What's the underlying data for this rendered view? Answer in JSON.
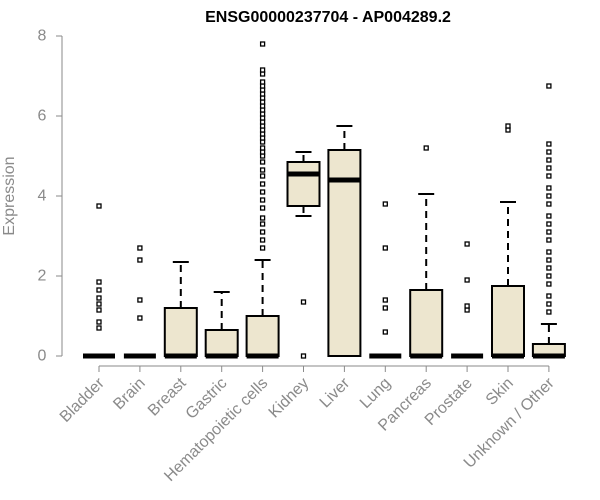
{
  "chart_data": {
    "type": "box",
    "title": "ENSG00000237704 - AP004289.2",
    "xlabel": "",
    "ylabel": "Expression",
    "ylim": [
      0,
      8
    ],
    "yticks": [
      0,
      2,
      4,
      6,
      8
    ],
    "categories": [
      "Bladder",
      "Brain",
      "Breast",
      "Gastric",
      "Hematopoietic cells",
      "Kidney",
      "Liver",
      "Lung",
      "Pancreas",
      "Prostate",
      "Skin",
      "Unknown / Other"
    ],
    "box_fill": "#ede6cf",
    "boxes": [
      {
        "category": "Bladder",
        "q1": 0,
        "median": 0,
        "q3": 0,
        "whisker_low": 0,
        "whisker_high": 0,
        "outliers": [
          0.7,
          0.85,
          1.15,
          1.3,
          1.45,
          1.65,
          1.85,
          3.75
        ]
      },
      {
        "category": "Brain",
        "q1": 0,
        "median": 0,
        "q3": 0,
        "whisker_low": 0,
        "whisker_high": 0,
        "outliers": [
          0.95,
          1.4,
          2.4,
          2.7
        ]
      },
      {
        "category": "Breast",
        "q1": 0,
        "median": 0,
        "q3": 1.2,
        "whisker_low": 0,
        "whisker_high": 2.35,
        "outliers": []
      },
      {
        "category": "Gastric",
        "q1": 0,
        "median": 0,
        "q3": 0.65,
        "whisker_low": 0,
        "whisker_high": 1.6,
        "outliers": []
      },
      {
        "category": "Hematopoietic cells",
        "q1": 0,
        "median": 0,
        "q3": 1.0,
        "whisker_low": 0,
        "whisker_high": 2.4,
        "outliers": [
          2.7,
          2.9,
          3.1,
          3.3,
          3.45,
          3.7,
          3.9,
          4.1,
          4.3,
          4.5,
          4.65,
          4.85,
          5.0,
          5.1,
          5.2,
          5.35,
          5.45,
          5.55,
          5.65,
          5.75,
          5.85,
          5.95,
          6.05,
          6.15,
          6.25,
          6.35,
          6.45,
          6.55,
          6.65,
          6.75,
          6.85,
          7.05,
          7.15,
          7.8
        ]
      },
      {
        "category": "Kidney",
        "q1": 3.75,
        "median": 4.55,
        "q3": 4.85,
        "whisker_low": 3.5,
        "whisker_high": 5.1,
        "outliers": [
          0,
          1.35
        ]
      },
      {
        "category": "Liver",
        "q1": 0,
        "median": 4.4,
        "q3": 5.15,
        "whisker_low": 0,
        "whisker_high": 5.75,
        "outliers": []
      },
      {
        "category": "Lung",
        "q1": 0,
        "median": 0,
        "q3": 0,
        "whisker_low": 0,
        "whisker_high": 0,
        "outliers": [
          0.6,
          1.2,
          1.4,
          2.7,
          3.8
        ]
      },
      {
        "category": "Pancreas",
        "q1": 0,
        "median": 0,
        "q3": 1.65,
        "whisker_low": 0,
        "whisker_high": 4.05,
        "outliers": [
          5.2
        ]
      },
      {
        "category": "Prostate",
        "q1": 0,
        "median": 0,
        "q3": 0,
        "whisker_low": 0,
        "whisker_high": 0,
        "outliers": [
          1.15,
          1.25,
          1.9,
          2.8
        ]
      },
      {
        "category": "Skin",
        "q1": 0,
        "median": 0,
        "q3": 1.75,
        "whisker_low": 0,
        "whisker_high": 3.85,
        "outliers": [
          5.65,
          5.75
        ]
      },
      {
        "category": "Unknown / Other",
        "q1": 0,
        "median": 0,
        "q3": 0.3,
        "whisker_low": 0,
        "whisker_high": 0.8,
        "outliers": [
          1.1,
          1.3,
          1.5,
          1.8,
          2.0,
          2.2,
          2.4,
          2.6,
          2.9,
          3.1,
          3.3,
          3.5,
          3.8,
          4.0,
          4.2,
          4.5,
          4.7,
          4.9,
          5.1,
          5.3,
          6.75
        ]
      }
    ]
  }
}
